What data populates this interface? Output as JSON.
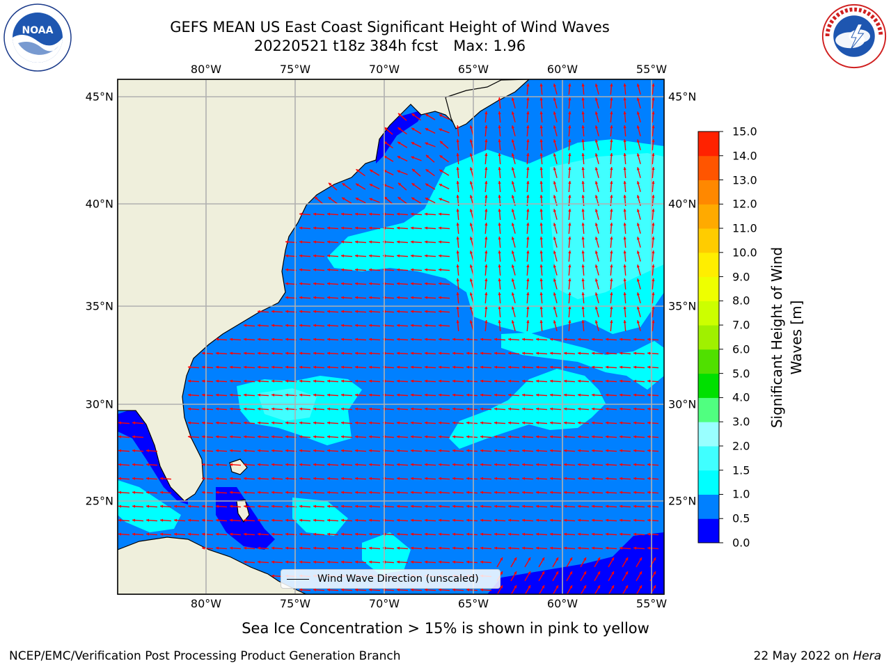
{
  "header": {
    "title_line1": "GEFS MEAN US East Coast Significant Height of Wind Waves",
    "title_line2_date": "20220521 t18z 384h fcst",
    "title_line2_max": "Max: 1.96"
  },
  "logos": {
    "noaa": {
      "text": "NOAA",
      "ring_text": "NATIONAL OCEANIC AND ATMOSPHERIC ADMINISTRATION · U.S. DEPARTMENT OF COMMERCE"
    },
    "nws": {
      "ring_text": "NATIONAL WEATHER SERVICE"
    }
  },
  "map": {
    "lon_labels": [
      "80°W",
      "75°W",
      "70°W",
      "65°W",
      "60°W",
      "55°W"
    ],
    "lat_labels": [
      "45°N",
      "40°N",
      "35°N",
      "30°N",
      "25°N"
    ],
    "land_color": "#efefdc",
    "grid_color": "#b0b0b0",
    "arrow_color": "#ff0000",
    "legend_label": "Wind Wave Direction (unscaled)"
  },
  "colorbar": {
    "label": "Significant Height of Wind Waves [m]",
    "ticks": [
      "0.0",
      "0.5",
      "1.0",
      "1.5",
      "2.0",
      "3.0",
      "4.0",
      "5.0",
      "6.0",
      "7.0",
      "8.0",
      "9.0",
      "10.0",
      "11.0",
      "12.0",
      "13.0",
      "14.0",
      "15.0"
    ],
    "colors": [
      "#0000ff",
      "#0080ff",
      "#00ffff",
      "#40ffff",
      "#99ffff",
      "#50ff80",
      "#00e000",
      "#50e000",
      "#a0f000",
      "#ccff00",
      "#eeff00",
      "#ffee00",
      "#ffcc00",
      "#ffaa00",
      "#ff8800",
      "#ff5500",
      "#ff2200"
    ]
  },
  "notes": {
    "sea_ice": "Sea Ice Concentration > 15% is shown in pink to yellow"
  },
  "footer": {
    "left": "NCEP/EMC/Verification Post Processing Product Generation Branch",
    "date_prefix": "22 May 2022 on",
    "machine": "Hera"
  }
}
